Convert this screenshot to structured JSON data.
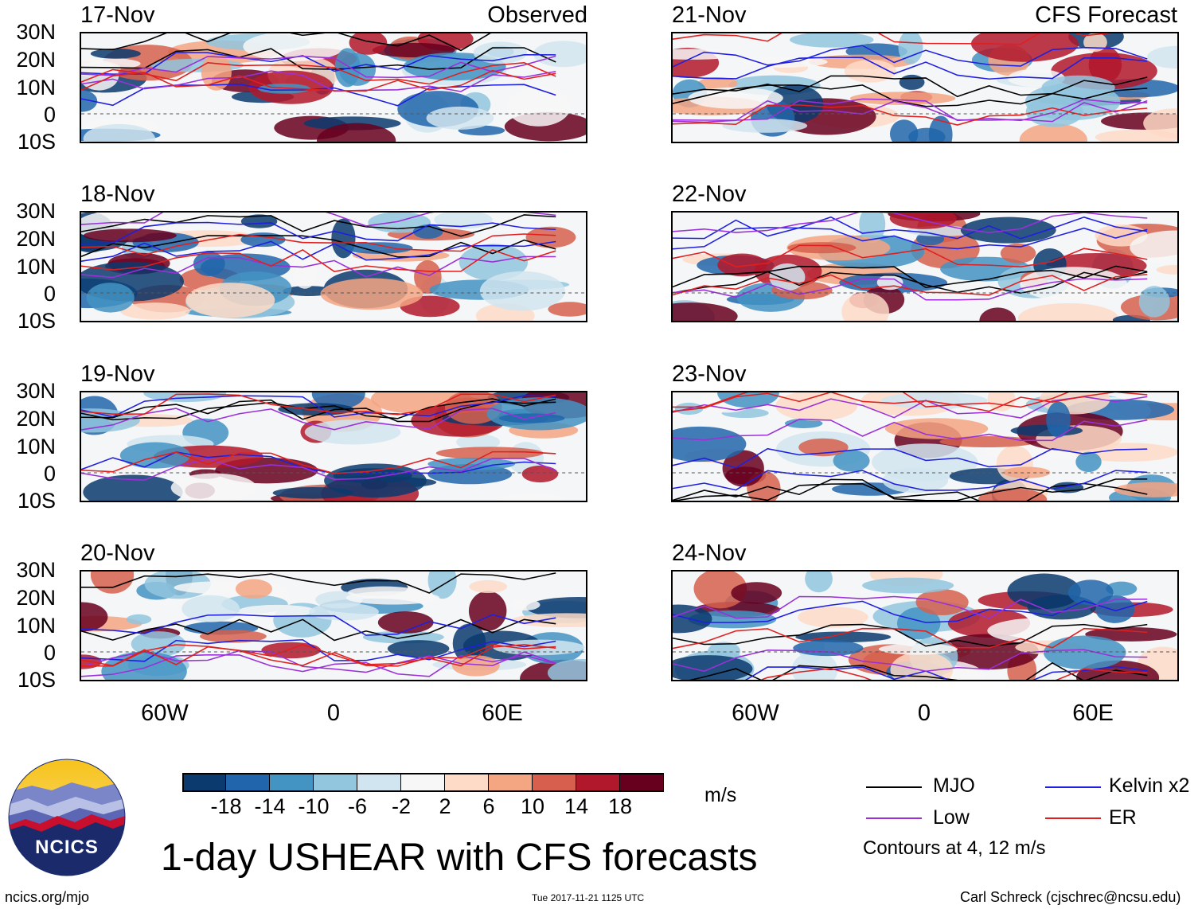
{
  "headers": {
    "observed_label": "Observed",
    "forecast_label": "CFS Forecast"
  },
  "lat_labels": [
    "30N",
    "20N",
    "10N",
    "0",
    "10S"
  ],
  "lon_labels": [
    "60W",
    "0",
    "60E"
  ],
  "observed_panels": [
    {
      "date": "17-Nov"
    },
    {
      "date": "18-Nov"
    },
    {
      "date": "19-Nov"
    },
    {
      "date": "20-Nov"
    }
  ],
  "forecast_panels": [
    {
      "date": "21-Nov"
    },
    {
      "date": "22-Nov"
    },
    {
      "date": "23-Nov"
    },
    {
      "date": "24-Nov"
    }
  ],
  "colorbar": {
    "unit": "m/s",
    "ticks": [
      "-18",
      "-14",
      "-10",
      "-6",
      "-2",
      "2",
      "6",
      "10",
      "14",
      "18"
    ],
    "colors": [
      "#0b3a6f",
      "#2166ac",
      "#4393c3",
      "#92c5de",
      "#d1e5f0",
      "#f7f7f7",
      "#fddbc7",
      "#f4a582",
      "#d6604d",
      "#b2182b",
      "#67001f"
    ]
  },
  "legend": {
    "items": [
      {
        "label": "MJO",
        "color": "#000000"
      },
      {
        "label": "Kelvin x2",
        "color": "#1f1fe0"
      },
      {
        "label": "Low",
        "color": "#9b30d9"
      },
      {
        "label": "ER",
        "color": "#e01f1f"
      }
    ],
    "contours_note": "Contours at 4, 12 m/s"
  },
  "logo": {
    "text": "NCICS"
  },
  "title": "1-day USHEAR with CFS forecasts",
  "footer": {
    "left": "ncics.org/mjo",
    "center": "Tue 2017-11-21 1125 UTC",
    "right": "Carl Schreck (cjschrec@ncsu.edu)"
  }
}
